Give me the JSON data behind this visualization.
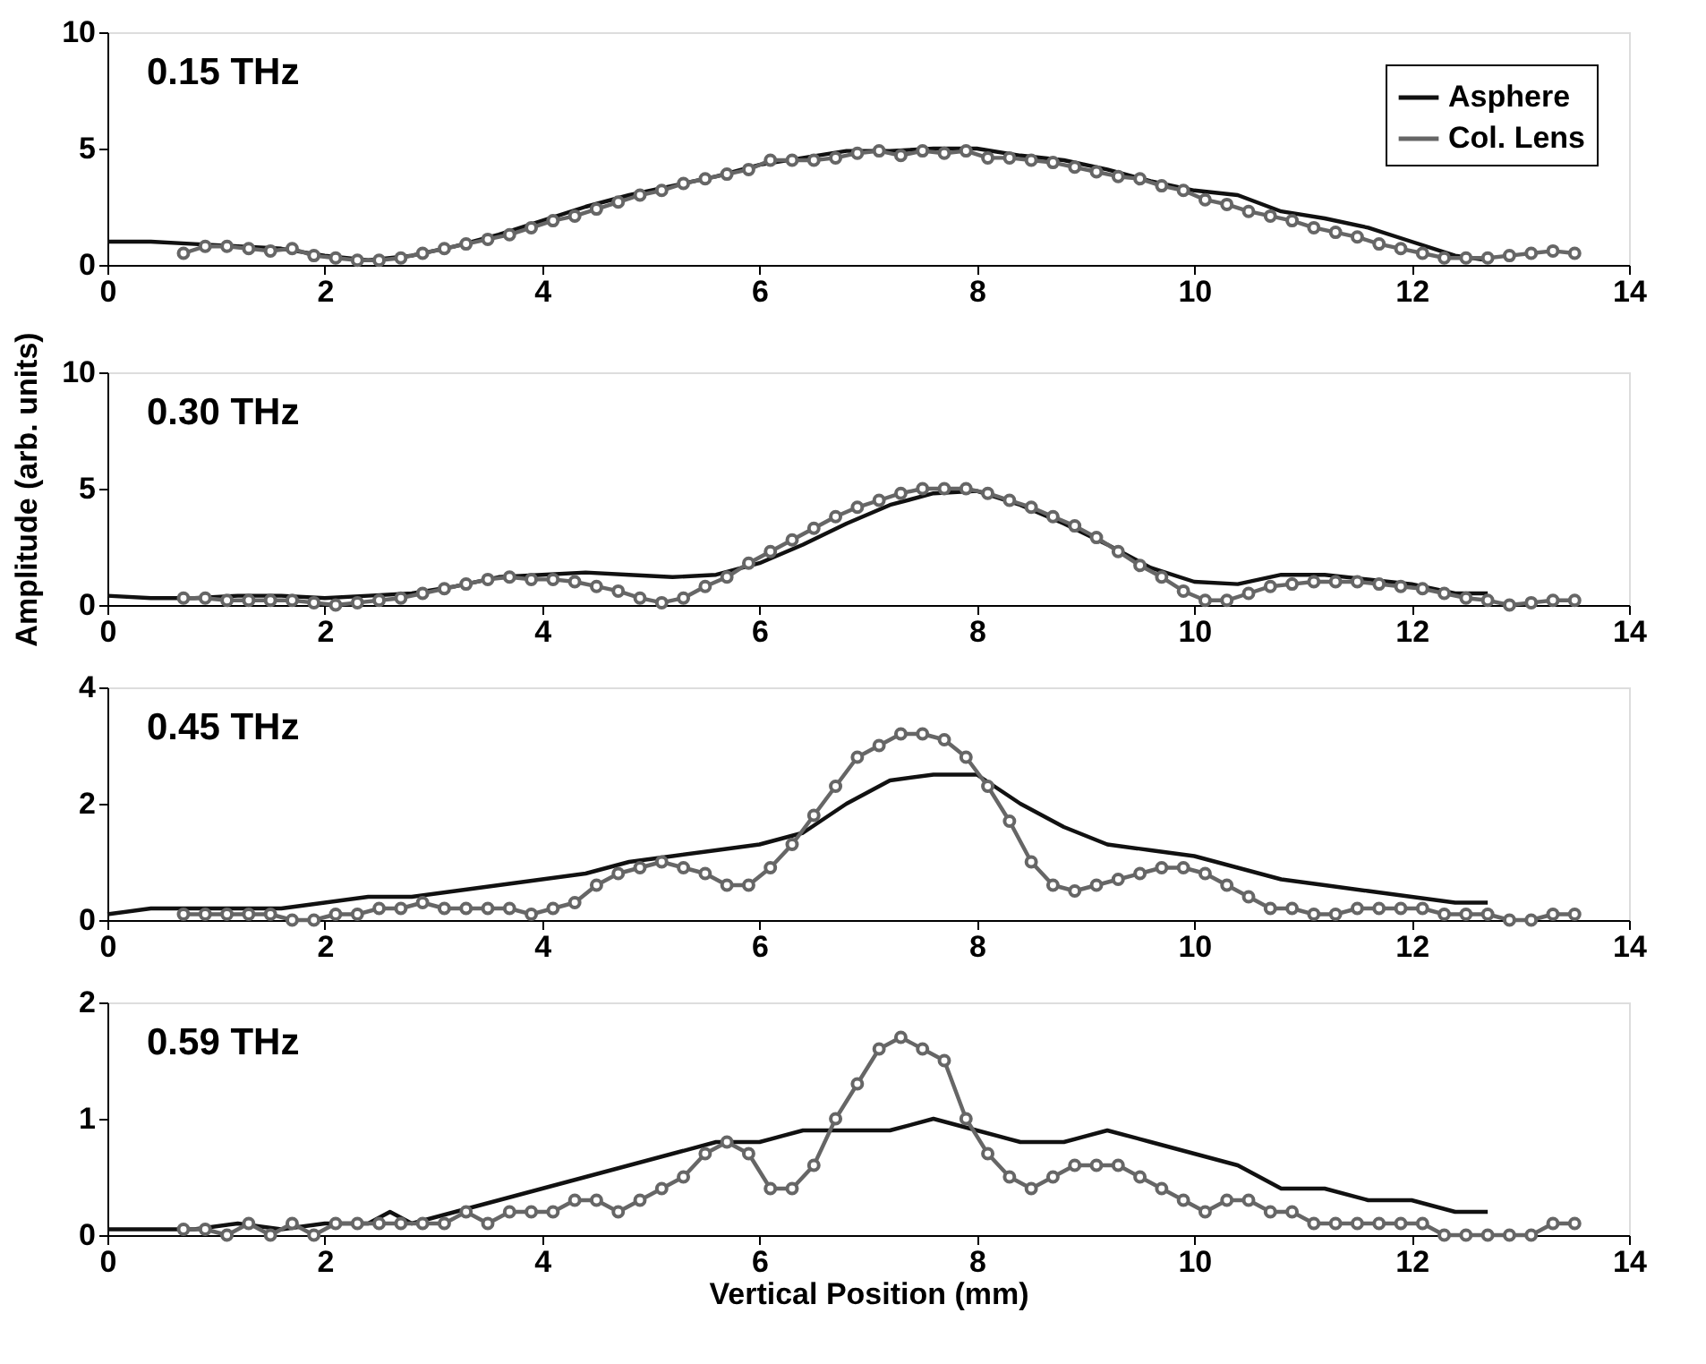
{
  "chart_data": [
    {
      "type": "line",
      "annotations": [
        "0.15 THz"
      ],
      "xlim": [
        0,
        14
      ],
      "xticks": [
        0,
        2,
        4,
        6,
        8,
        10,
        12,
        14
      ],
      "ylim": [
        0,
        10
      ],
      "yticks": [
        0,
        5,
        10
      ],
      "grid": false,
      "legend": "top right",
      "series": [
        {
          "name": "Asphere",
          "color": "#111111",
          "marker": "none",
          "x": [
            0,
            0.4,
            0.8,
            1.2,
            1.6,
            2.0,
            2.4,
            2.8,
            3.2,
            3.6,
            4.0,
            4.4,
            4.8,
            5.2,
            5.6,
            6.0,
            6.4,
            6.8,
            7.2,
            7.6,
            8.0,
            8.4,
            8.8,
            9.2,
            9.6,
            10.0,
            10.4,
            10.8,
            11.2,
            11.6,
            12.0,
            12.4,
            12.7
          ],
          "values": [
            1.0,
            1.0,
            0.9,
            0.8,
            0.7,
            0.4,
            0.2,
            0.4,
            0.8,
            1.3,
            1.9,
            2.5,
            3.0,
            3.4,
            3.8,
            4.3,
            4.6,
            4.9,
            4.9,
            5.0,
            5.0,
            4.7,
            4.5,
            4.1,
            3.6,
            3.2,
            3.0,
            2.3,
            2.0,
            1.6,
            1.0,
            0.4,
            0.2
          ]
        },
        {
          "name": "Col. Lens",
          "color": "#666666",
          "marker": "circle",
          "x": [
            0.7,
            0.9,
            1.1,
            1.3,
            1.5,
            1.7,
            1.9,
            2.1,
            2.3,
            2.5,
            2.7,
            2.9,
            3.1,
            3.3,
            3.5,
            3.7,
            3.9,
            4.1,
            4.3,
            4.5,
            4.7,
            4.9,
            5.1,
            5.3,
            5.5,
            5.7,
            5.9,
            6.1,
            6.3,
            6.5,
            6.7,
            6.9,
            7.1,
            7.3,
            7.5,
            7.7,
            7.9,
            8.1,
            8.3,
            8.5,
            8.7,
            8.9,
            9.1,
            9.3,
            9.5,
            9.7,
            9.9,
            10.1,
            10.3,
            10.5,
            10.7,
            10.9,
            11.1,
            11.3,
            11.5,
            11.7,
            11.9,
            12.1,
            12.3,
            12.5,
            12.7,
            12.9,
            13.1,
            13.3,
            13.5
          ],
          "values": [
            0.5,
            0.8,
            0.8,
            0.7,
            0.6,
            0.7,
            0.4,
            0.3,
            0.2,
            0.2,
            0.3,
            0.5,
            0.7,
            0.9,
            1.1,
            1.3,
            1.6,
            1.9,
            2.1,
            2.4,
            2.7,
            3.0,
            3.2,
            3.5,
            3.7,
            3.9,
            4.1,
            4.5,
            4.5,
            4.5,
            4.6,
            4.8,
            4.9,
            4.7,
            4.9,
            4.8,
            4.9,
            4.6,
            4.6,
            4.5,
            4.4,
            4.2,
            4.0,
            3.8,
            3.7,
            3.4,
            3.2,
            2.8,
            2.6,
            2.3,
            2.1,
            1.9,
            1.6,
            1.4,
            1.2,
            0.9,
            0.7,
            0.5,
            0.3,
            0.3,
            0.3,
            0.4,
            0.5,
            0.6,
            0.5
          ]
        }
      ]
    },
    {
      "type": "line",
      "annotations": [
        "0.30 THz"
      ],
      "ylabel": "Amplitude (arb. units)",
      "xlim": [
        0,
        14
      ],
      "xticks": [
        0,
        2,
        4,
        6,
        8,
        10,
        12,
        14
      ],
      "ylim": [
        0,
        10
      ],
      "yticks": [
        0,
        5,
        10
      ],
      "grid": false,
      "legend": false,
      "series": [
        {
          "color": "#111111",
          "marker": "none",
          "x": [
            0,
            0.4,
            0.8,
            1.2,
            1.6,
            2.0,
            2.4,
            2.8,
            3.2,
            3.6,
            4.0,
            4.4,
            4.8,
            5.2,
            5.6,
            6.0,
            6.4,
            6.8,
            7.2,
            7.6,
            8.0,
            8.4,
            8.8,
            9.2,
            9.6,
            10.0,
            10.4,
            10.8,
            11.2,
            11.6,
            12.0,
            12.4,
            12.7
          ],
          "values": [
            0.4,
            0.3,
            0.3,
            0.4,
            0.4,
            0.3,
            0.4,
            0.5,
            0.8,
            1.2,
            1.3,
            1.4,
            1.3,
            1.2,
            1.3,
            1.8,
            2.6,
            3.5,
            4.3,
            4.8,
            4.9,
            4.3,
            3.5,
            2.6,
            1.6,
            1.0,
            0.9,
            1.3,
            1.3,
            1.1,
            0.9,
            0.5,
            0.5
          ]
        },
        {
          "color": "#666666",
          "marker": "circle",
          "x": [
            0.7,
            0.9,
            1.1,
            1.3,
            1.5,
            1.7,
            1.9,
            2.1,
            2.3,
            2.5,
            2.7,
            2.9,
            3.1,
            3.3,
            3.5,
            3.7,
            3.9,
            4.1,
            4.3,
            4.5,
            4.7,
            4.9,
            5.1,
            5.3,
            5.5,
            5.7,
            5.9,
            6.1,
            6.3,
            6.5,
            6.7,
            6.9,
            7.1,
            7.3,
            7.5,
            7.7,
            7.9,
            8.1,
            8.3,
            8.5,
            8.7,
            8.9,
            9.1,
            9.3,
            9.5,
            9.7,
            9.9,
            10.1,
            10.3,
            10.5,
            10.7,
            10.9,
            11.1,
            11.3,
            11.5,
            11.7,
            11.9,
            12.1,
            12.3,
            12.5,
            12.7,
            12.9,
            13.1,
            13.3,
            13.5
          ],
          "values": [
            0.3,
            0.3,
            0.2,
            0.2,
            0.2,
            0.2,
            0.1,
            0.0,
            0.1,
            0.2,
            0.3,
            0.5,
            0.7,
            0.9,
            1.1,
            1.2,
            1.1,
            1.1,
            1.0,
            0.8,
            0.6,
            0.3,
            0.1,
            0.3,
            0.8,
            1.2,
            1.8,
            2.3,
            2.8,
            3.3,
            3.8,
            4.2,
            4.5,
            4.8,
            5.0,
            5.0,
            5.0,
            4.8,
            4.5,
            4.2,
            3.8,
            3.4,
            2.9,
            2.3,
            1.7,
            1.2,
            0.6,
            0.2,
            0.2,
            0.5,
            0.8,
            0.9,
            1.0,
            1.0,
            1.0,
            0.9,
            0.8,
            0.7,
            0.5,
            0.3,
            0.2,
            0.0,
            0.1,
            0.2,
            0.2
          ]
        }
      ]
    },
    {
      "type": "line",
      "annotations": [
        "0.45 THz"
      ],
      "xlim": [
        0,
        14
      ],
      "xticks": [
        0,
        2,
        4,
        6,
        8,
        10,
        12,
        14
      ],
      "ylim": [
        0,
        4
      ],
      "yticks": [
        0,
        2,
        4
      ],
      "grid": false,
      "legend": false,
      "series": [
        {
          "color": "#111111",
          "marker": "none",
          "x": [
            0,
            0.4,
            0.8,
            1.2,
            1.6,
            2.0,
            2.4,
            2.8,
            3.2,
            3.6,
            4.0,
            4.4,
            4.8,
            5.2,
            5.6,
            6.0,
            6.4,
            6.8,
            7.2,
            7.6,
            8.0,
            8.4,
            8.8,
            9.2,
            9.6,
            10.0,
            10.4,
            10.8,
            11.2,
            11.6,
            12.0,
            12.4,
            12.7
          ],
          "values": [
            0.1,
            0.2,
            0.2,
            0.2,
            0.2,
            0.3,
            0.4,
            0.4,
            0.5,
            0.6,
            0.7,
            0.8,
            1.0,
            1.1,
            1.2,
            1.3,
            1.5,
            2.0,
            2.4,
            2.5,
            2.5,
            2.0,
            1.6,
            1.3,
            1.2,
            1.1,
            0.9,
            0.7,
            0.6,
            0.5,
            0.4,
            0.3,
            0.3
          ]
        },
        {
          "color": "#666666",
          "marker": "circle",
          "x": [
            0.7,
            0.9,
            1.1,
            1.3,
            1.5,
            1.7,
            1.9,
            2.1,
            2.3,
            2.5,
            2.7,
            2.9,
            3.1,
            3.3,
            3.5,
            3.7,
            3.9,
            4.1,
            4.3,
            4.5,
            4.7,
            4.9,
            5.1,
            5.3,
            5.5,
            5.7,
            5.9,
            6.1,
            6.3,
            6.5,
            6.7,
            6.9,
            7.1,
            7.3,
            7.5,
            7.7,
            7.9,
            8.1,
            8.3,
            8.5,
            8.7,
            8.9,
            9.1,
            9.3,
            9.5,
            9.7,
            9.9,
            10.1,
            10.3,
            10.5,
            10.7,
            10.9,
            11.1,
            11.3,
            11.5,
            11.7,
            11.9,
            12.1,
            12.3,
            12.5,
            12.7,
            12.9,
            13.1,
            13.3,
            13.5
          ],
          "values": [
            0.1,
            0.1,
            0.1,
            0.1,
            0.1,
            0.0,
            0.0,
            0.1,
            0.1,
            0.2,
            0.2,
            0.3,
            0.2,
            0.2,
            0.2,
            0.2,
            0.1,
            0.2,
            0.3,
            0.6,
            0.8,
            0.9,
            1.0,
            0.9,
            0.8,
            0.6,
            0.6,
            0.9,
            1.3,
            1.8,
            2.3,
            2.8,
            3.0,
            3.2,
            3.2,
            3.1,
            2.8,
            2.3,
            1.7,
            1.0,
            0.6,
            0.5,
            0.6,
            0.7,
            0.8,
            0.9,
            0.9,
            0.8,
            0.6,
            0.4,
            0.2,
            0.2,
            0.1,
            0.1,
            0.2,
            0.2,
            0.2,
            0.2,
            0.1,
            0.1,
            0.1,
            0.0,
            0.0,
            0.1,
            0.1
          ]
        }
      ]
    },
    {
      "type": "line",
      "annotations": [
        "0.59 THz"
      ],
      "xlabel": "Vertical Position (mm)",
      "xlim": [
        0,
        14
      ],
      "xticks": [
        0,
        2,
        4,
        6,
        8,
        10,
        12,
        14
      ],
      "ylim": [
        0,
        2
      ],
      "yticks": [
        0,
        1,
        2
      ],
      "grid": false,
      "legend": false,
      "series": [
        {
          "color": "#111111",
          "marker": "none",
          "x": [
            0,
            0.4,
            0.8,
            1.2,
            1.6,
            2.0,
            2.4,
            2.6,
            2.8,
            3.2,
            3.6,
            4.0,
            4.4,
            4.8,
            5.2,
            5.6,
            6.0,
            6.4,
            6.8,
            7.2,
            7.6,
            8.0,
            8.4,
            8.8,
            9.2,
            9.6,
            10.0,
            10.4,
            10.8,
            11.2,
            11.6,
            12.0,
            12.4,
            12.7
          ],
          "values": [
            0.05,
            0.05,
            0.05,
            0.1,
            0.05,
            0.1,
            0.1,
            0.2,
            0.1,
            0.2,
            0.3,
            0.4,
            0.5,
            0.6,
            0.7,
            0.8,
            0.8,
            0.9,
            0.9,
            0.9,
            1.0,
            0.9,
            0.8,
            0.8,
            0.9,
            0.8,
            0.7,
            0.6,
            0.4,
            0.4,
            0.3,
            0.3,
            0.2,
            0.2
          ]
        },
        {
          "color": "#666666",
          "marker": "circle",
          "x": [
            0.7,
            0.9,
            1.1,
            1.3,
            1.5,
            1.7,
            1.9,
            2.1,
            2.3,
            2.5,
            2.7,
            2.9,
            3.1,
            3.3,
            3.5,
            3.7,
            3.9,
            4.1,
            4.3,
            4.5,
            4.7,
            4.9,
            5.1,
            5.3,
            5.5,
            5.7,
            5.9,
            6.1,
            6.3,
            6.5,
            6.7,
            6.9,
            7.1,
            7.3,
            7.5,
            7.7,
            7.9,
            8.1,
            8.3,
            8.5,
            8.7,
            8.9,
            9.1,
            9.3,
            9.5,
            9.7,
            9.9,
            10.1,
            10.3,
            10.5,
            10.7,
            10.9,
            11.1,
            11.3,
            11.5,
            11.7,
            11.9,
            12.1,
            12.3,
            12.5,
            12.7,
            12.9,
            13.1,
            13.3,
            13.5
          ],
          "values": [
            0.05,
            0.05,
            0.0,
            0.1,
            0.0,
            0.1,
            0.0,
            0.1,
            0.1,
            0.1,
            0.1,
            0.1,
            0.1,
            0.2,
            0.1,
            0.2,
            0.2,
            0.2,
            0.3,
            0.3,
            0.2,
            0.3,
            0.4,
            0.5,
            0.7,
            0.8,
            0.7,
            0.4,
            0.4,
            0.6,
            1.0,
            1.3,
            1.6,
            1.7,
            1.6,
            1.5,
            1.0,
            0.7,
            0.5,
            0.4,
            0.5,
            0.6,
            0.6,
            0.6,
            0.5,
            0.4,
            0.3,
            0.2,
            0.3,
            0.3,
            0.2,
            0.2,
            0.1,
            0.1,
            0.1,
            0.1,
            0.1,
            0.1,
            0.0,
            0.0,
            0.0,
            0.0,
            0.0,
            0.1,
            0.1
          ]
        }
      ]
    }
  ]
}
